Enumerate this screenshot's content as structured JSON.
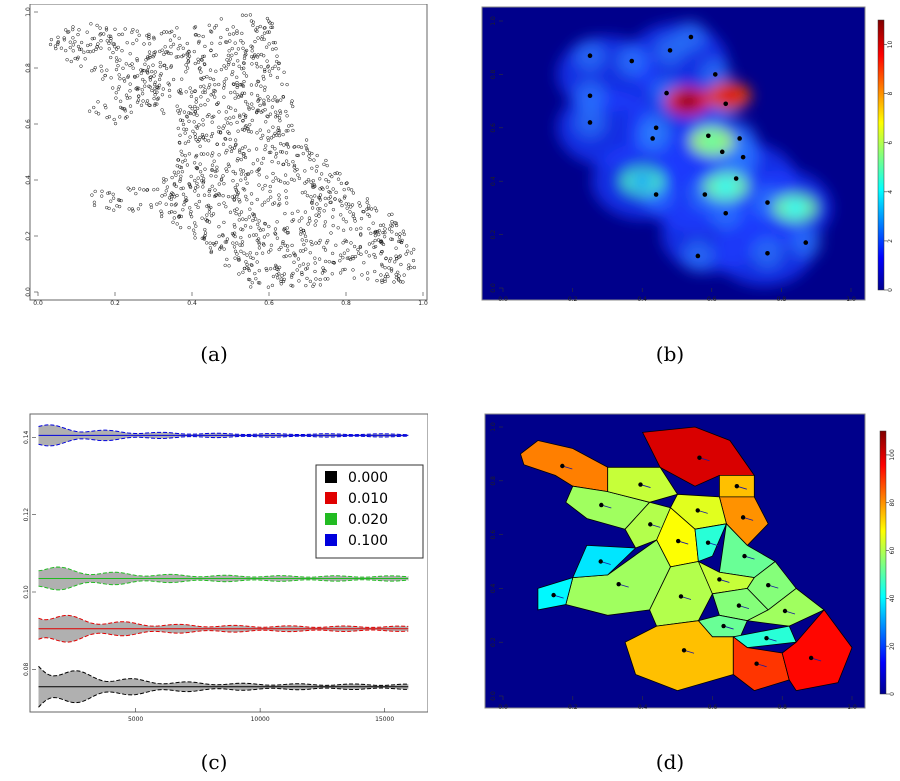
{
  "captions": [
    "(a)",
    "(b)",
    "(c)",
    "(d)"
  ],
  "panels": {
    "a": {
      "x_ticks": [
        "0.0",
        "0.2",
        "0.4",
        "0.6",
        "0.8",
        "1.0"
      ],
      "y_ticks": [
        "0.0",
        "0.2",
        "0.4",
        "0.6",
        "0.8",
        "1.0"
      ]
    },
    "b": {
      "x_ticks": [
        "0.0",
        "0.2",
        "0.4",
        "0.6",
        "0.8",
        "1.0"
      ],
      "y_ticks": [
        "0.0",
        "0.2",
        "0.4",
        "0.6",
        "0.8",
        "1.0"
      ],
      "colorbar_ticks": [
        "0",
        "2",
        "4",
        "6",
        "8",
        "10"
      ]
    },
    "c": {
      "x_ticks": [
        "5000",
        "10000",
        "15000"
      ],
      "y_ticks": [
        "0.08",
        "0.10",
        "0.12",
        "0.14"
      ],
      "legend": [
        {
          "label": "0.000",
          "color": "#000000"
        },
        {
          "label": "0.010",
          "color": "#e00000"
        },
        {
          "label": "0.020",
          "color": "#22bb22"
        },
        {
          "label": "0.100",
          "color": "#0000dd"
        }
      ]
    },
    "d": {
      "x_ticks": [
        "0.0",
        "0.2",
        "0.4",
        "0.6",
        "0.8",
        "1.0"
      ],
      "y_ticks": [
        "0.0",
        "0.2",
        "0.4",
        "0.6",
        "0.8",
        "1.0"
      ],
      "colorbar_ticks": [
        "0",
        "20",
        "40",
        "60",
        "80",
        "100"
      ]
    }
  },
  "chart_data": [
    {
      "id": "a",
      "type": "scatter",
      "xlim": [
        0,
        1
      ],
      "ylim": [
        0,
        1
      ],
      "point_style": "open circles, black",
      "cloud_outline": [
        [
          0.02,
          0.88
        ],
        [
          0.08,
          0.97
        ],
        [
          0.18,
          0.95
        ],
        [
          0.3,
          0.93
        ],
        [
          0.45,
          0.97
        ],
        [
          0.58,
          1.0
        ],
        [
          0.62,
          0.95
        ],
        [
          0.62,
          0.85
        ],
        [
          0.66,
          0.72
        ],
        [
          0.68,
          0.58
        ],
        [
          0.74,
          0.48
        ],
        [
          0.84,
          0.35
        ],
        [
          0.92,
          0.28
        ],
        [
          0.97,
          0.18
        ],
        [
          1.0,
          0.1
        ],
        [
          0.98,
          0.02
        ],
        [
          0.9,
          0.03
        ],
        [
          0.78,
          0.04
        ],
        [
          0.72,
          0.02
        ],
        [
          0.62,
          0.01
        ],
        [
          0.56,
          0.0
        ],
        [
          0.52,
          0.06
        ],
        [
          0.48,
          0.1
        ],
        [
          0.42,
          0.18
        ],
        [
          0.34,
          0.24
        ],
        [
          0.3,
          0.3
        ],
        [
          0.22,
          0.28
        ],
        [
          0.14,
          0.3
        ],
        [
          0.14,
          0.36
        ],
        [
          0.3,
          0.38
        ],
        [
          0.36,
          0.44
        ],
        [
          0.36,
          0.6
        ],
        [
          0.28,
          0.66
        ],
        [
          0.2,
          0.6
        ],
        [
          0.12,
          0.65
        ],
        [
          0.2,
          0.74
        ],
        [
          0.1,
          0.8
        ]
      ]
    },
    {
      "id": "b",
      "type": "heatmap",
      "xlim": [
        0,
        1
      ],
      "ylim": [
        0,
        1
      ],
      "colorbar_range": [
        0,
        11
      ],
      "points": [
        [
          0.25,
          0.87
        ],
        [
          0.37,
          0.85
        ],
        [
          0.48,
          0.89
        ],
        [
          0.54,
          0.94
        ],
        [
          0.61,
          0.8
        ],
        [
          0.25,
          0.72
        ],
        [
          0.47,
          0.73
        ],
        [
          0.64,
          0.69
        ],
        [
          0.25,
          0.62
        ],
        [
          0.44,
          0.6
        ],
        [
          0.43,
          0.56
        ],
        [
          0.59,
          0.57
        ],
        [
          0.68,
          0.56
        ],
        [
          0.63,
          0.51
        ],
        [
          0.69,
          0.49
        ],
        [
          0.67,
          0.41
        ],
        [
          0.44,
          0.35
        ],
        [
          0.58,
          0.35
        ],
        [
          0.64,
          0.28
        ],
        [
          0.76,
          0.32
        ],
        [
          0.87,
          0.17
        ],
        [
          0.56,
          0.12
        ],
        [
          0.76,
          0.13
        ]
      ],
      "peaks": [
        [
          0.53,
          0.7,
          11
        ],
        [
          0.65,
          0.72,
          10
        ],
        [
          0.6,
          0.55,
          5
        ],
        [
          0.64,
          0.38,
          4
        ],
        [
          0.84,
          0.3,
          4
        ],
        [
          0.4,
          0.4,
          3
        ]
      ]
    },
    {
      "id": "c",
      "type": "line",
      "xlim": [
        1000,
        16500
      ],
      "ylim": [
        0.07,
        0.145
      ],
      "series": [
        {
          "name": "0.000",
          "mean": 0.0755,
          "band_start": 0.0055,
          "band_end": 0.0005
        },
        {
          "name": "0.010",
          "mean": 0.0905,
          "band_start": 0.004,
          "band_end": 0.0005
        },
        {
          "name": "0.020",
          "mean": 0.1035,
          "band_start": 0.003,
          "band_end": 0.0005
        },
        {
          "name": "0.100",
          "mean": 0.1405,
          "band_start": 0.0025,
          "band_end": 0.0003
        }
      ]
    },
    {
      "id": "d",
      "type": "heatmap",
      "xlim": [
        0,
        1
      ],
      "ylim": [
        0,
        1
      ],
      "colorbar_range": [
        0,
        110
      ],
      "region_values": [
        82,
        100,
        58,
        62,
        75,
        80,
        65,
        60,
        68,
        45,
        52,
        62,
        58,
        60,
        55,
        55,
        52,
        58,
        45,
        40,
        38,
        75,
        90,
        95
      ]
    }
  ]
}
